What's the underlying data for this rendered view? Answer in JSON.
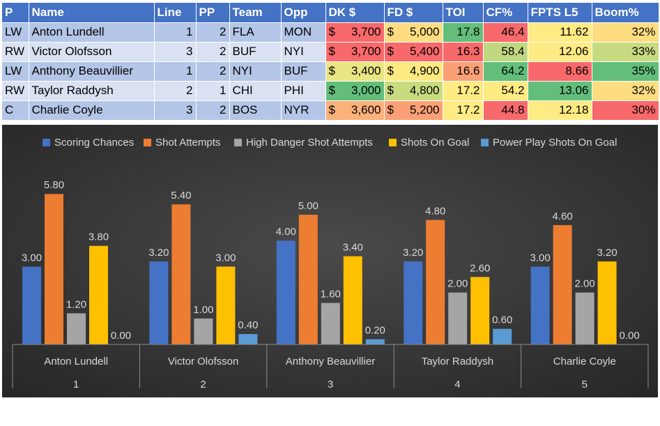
{
  "table": {
    "headers": [
      "P",
      "Name",
      "Line",
      "PP",
      "Team",
      "Opp",
      "DK $",
      "FD $",
      "TOI",
      "CF%",
      "FPTS L5",
      "Boom%"
    ],
    "rows": [
      {
        "pos": "LW",
        "name": "Anton Lundell",
        "line": "1",
        "pp": "2",
        "team": "FLA",
        "opp": "MON",
        "dk": "3,700",
        "fd": "5,000",
        "toi": "17.8",
        "cf": "46.4",
        "fpts": "11.62",
        "boom": "32%"
      },
      {
        "pos": "RW",
        "name": "Victor Olofsson",
        "line": "3",
        "pp": "2",
        "team": "BUF",
        "opp": "NYI",
        "dk": "3,700",
        "fd": "5,400",
        "toi": "16.3",
        "cf": "58.4",
        "fpts": "12.06",
        "boom": "33%"
      },
      {
        "pos": "LW",
        "name": "Anthony Beauvillier",
        "line": "1",
        "pp": "2",
        "team": "NYI",
        "opp": "BUF",
        "dk": "3,400",
        "fd": "4,900",
        "toi": "16.6",
        "cf": "64.2",
        "fpts": "8.66",
        "boom": "35%"
      },
      {
        "pos": "RW",
        "name": "Taylor Raddysh",
        "line": "2",
        "pp": "1",
        "team": "CHI",
        "opp": "PHI",
        "dk": "3,000",
        "fd": "4,800",
        "toi": "17.2",
        "cf": "54.2",
        "fpts": "13.06",
        "boom": "32%"
      },
      {
        "pos": "C",
        "name": "Charlie Coyle",
        "line": "3",
        "pp": "2",
        "team": "BOS",
        "opp": "NYR",
        "dk": "3,600",
        "fd": "5,200",
        "toi": "17.2",
        "cf": "44.8",
        "fpts": "12.18",
        "boom": "30%"
      }
    ],
    "currency_symbol": "$",
    "heat_colors": {
      "dk": [
        "#f8696b",
        "#f8696b",
        "#e9e583",
        "#63be7b",
        "#fcb07a"
      ],
      "fd": [
        "#fedd81",
        "#f8696b",
        "#feea83",
        "#c9db81",
        "#fba076"
      ],
      "toi": [
        "#63be7b",
        "#f8696b",
        "#fba076",
        "#ffeb84",
        "#ffeb84"
      ],
      "cf": [
        "#f8696b",
        "#c0d980",
        "#63be7b",
        "#ffeb84",
        "#f8696b"
      ],
      "fpts": [
        "#ffeb84",
        "#ffeb84",
        "#f8696b",
        "#63be7b",
        "#ffeb84"
      ],
      "boom": [
        "#fedd81",
        "#c9db81",
        "#63be7b",
        "#fedd81",
        "#f8696b"
      ]
    }
  },
  "chart_data": {
    "type": "bar",
    "categories": [
      "Anton Lundell",
      "Victor Olofsson",
      "Anthony Beauvillier",
      "Taylor Raddysh",
      "Charlie Coyle"
    ],
    "category_numbers": [
      "1",
      "2",
      "3",
      "4",
      "5"
    ],
    "series": [
      {
        "name": "Scoring Chances",
        "color": "#4472c4",
        "values": [
          3.0,
          3.2,
          4.0,
          3.2,
          3.0
        ],
        "labels": [
          "3.00",
          "3.20",
          "4.00",
          "3.20",
          "3.00"
        ]
      },
      {
        "name": "Shot Attempts",
        "color": "#ed7d31",
        "values": [
          5.8,
          5.4,
          5.0,
          4.8,
          4.6
        ],
        "labels": [
          "5.80",
          "5.40",
          "5.00",
          "4.80",
          "4.60"
        ]
      },
      {
        "name": "High Danger Shot Attempts",
        "color": "#a5a5a5",
        "values": [
          1.2,
          1.0,
          1.6,
          2.0,
          2.0
        ],
        "labels": [
          "1.20",
          "1.00",
          "1.60",
          "2.00",
          "2.00"
        ]
      },
      {
        "name": "Shots On Goal",
        "color": "#ffc000",
        "values": [
          3.8,
          3.0,
          3.4,
          2.6,
          3.2
        ],
        "labels": [
          "3.80",
          "3.00",
          "3.40",
          "2.60",
          "3.20"
        ]
      },
      {
        "name": "Power Play Shots On Goal",
        "color": "#5b9bd5",
        "values": [
          0.0,
          0.4,
          0.2,
          0.6,
          0.0
        ],
        "labels": [
          "0.00",
          "0.40",
          "0.20",
          "0.60",
          "0.00"
        ]
      }
    ],
    "title": "",
    "xlabel": "",
    "ylabel": "",
    "ylim": [
      0,
      6.5
    ],
    "grid": false,
    "legend": "top",
    "background": "#404040"
  }
}
